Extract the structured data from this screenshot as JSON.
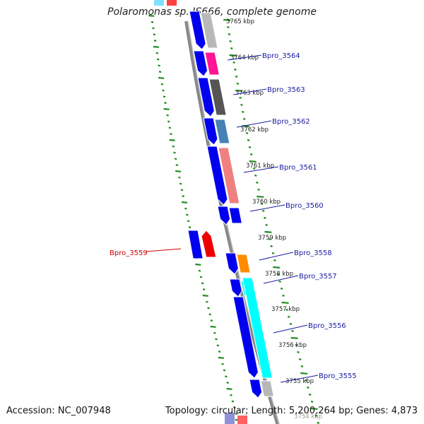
{
  "title": "Polaromonas sp. JS666, complete genome",
  "footer": {
    "accession": "Accession: NC_007948",
    "summary": "Topology: circular; Length: 5,200,264 bp; Genes: 4,873"
  },
  "colors": {
    "cds": "#0000ee",
    "highlight": "#ee0000",
    "ruler": "#228b22",
    "backbone": "#888888",
    "label_blue": "#1a1aa0",
    "label_red": "#cc0000"
  },
  "ruler_labels": [
    "3765 kbp",
    "3764 kbp",
    "3763 kbp",
    "3762 kbp",
    "3761 kbp",
    "3760 kbp",
    "3759 kbp",
    "3758 kbp",
    "3757 kbp",
    "3756 kbp",
    "3755 kbp",
    "3754 kbp"
  ],
  "gene_labels": [
    {
      "name": "Bpro_3564",
      "color": "blue"
    },
    {
      "name": "Bpro_3563",
      "color": "blue"
    },
    {
      "name": "Bpro_3562",
      "color": "blue"
    },
    {
      "name": "Bpro_3561",
      "color": "blue"
    },
    {
      "name": "Bpro_3560",
      "color": "blue"
    },
    {
      "name": "Bpro_3559",
      "color": "red"
    },
    {
      "name": "Bpro_3558",
      "color": "blue"
    },
    {
      "name": "Bpro_3557",
      "color": "blue"
    },
    {
      "name": "Bpro_3556",
      "color": "blue"
    },
    {
      "name": "Bpro_3555",
      "color": "blue"
    }
  ]
}
